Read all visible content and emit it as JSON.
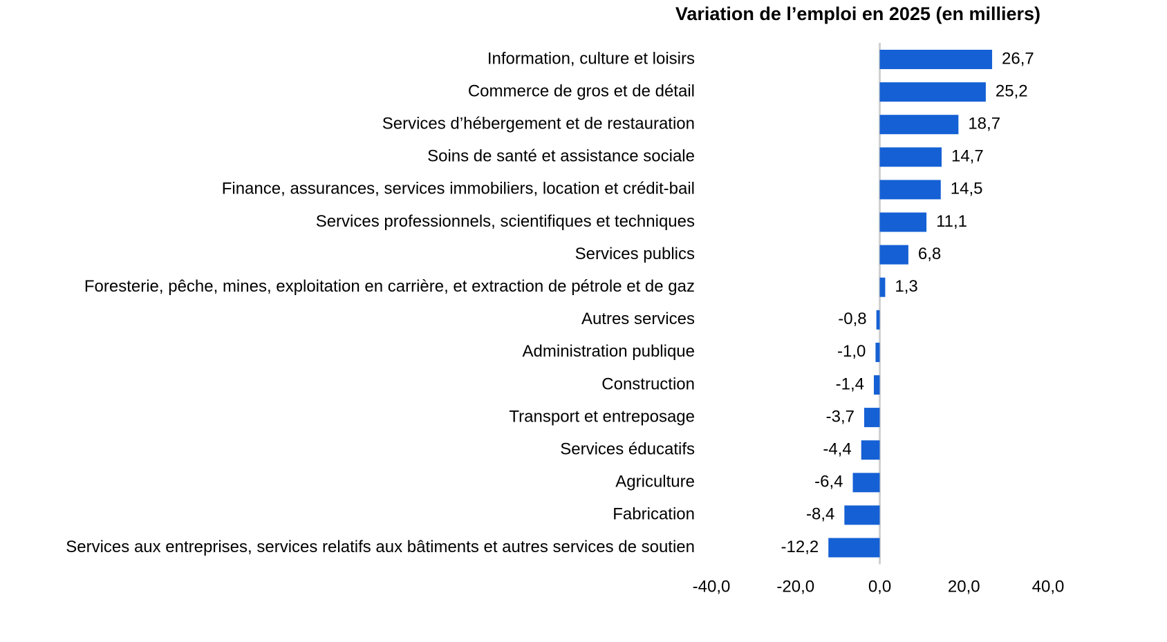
{
  "chart_data": {
    "type": "barh",
    "title": "Variation de l’emploi en 2025 (en milliers)",
    "categories": [
      "Information, culture et loisirs",
      "Commerce de gros et de détail",
      "Services d’hébergement et de restauration",
      "Soins de santé et assistance sociale",
      "Finance, assurances, services immobiliers, location et crédit-bail",
      "Services professionnels, scientifiques et techniques",
      "Services publics",
      "Foresterie, pêche, mines, exploitation en carrière, et extraction de pétrole et de gaz",
      "Autres services",
      "Administration publique",
      "Construction",
      "Transport et entreposage",
      "Services éducatifs",
      "Agriculture",
      "Fabrication",
      "Services aux entreprises, services relatifs aux bâtiments et autres services de soutien"
    ],
    "values": [
      26.7,
      25.2,
      18.7,
      14.7,
      14.5,
      11.1,
      6.8,
      1.3,
      -0.8,
      -1.0,
      -1.4,
      -3.7,
      -4.4,
      -6.4,
      -8.4,
      -12.2
    ],
    "value_labels": [
      "26,7",
      "25,2",
      "18,7",
      "14,7",
      "14,5",
      "11,1",
      "6,8",
      "1,3",
      "-0,8",
      "-1,0",
      "-1,4",
      "-3,7",
      "-4,4",
      "-6,4",
      "-8,4",
      "-12,2"
    ],
    "color": "#1560d4",
    "xlim": [
      -40,
      40
    ],
    "xticks": [
      {
        "value": -40,
        "label": "-40,0"
      },
      {
        "value": -20,
        "label": "-20,0"
      },
      {
        "value": 0,
        "label": "0,0"
      },
      {
        "value": 20,
        "label": "20,0"
      },
      {
        "value": 40,
        "label": "40,0"
      }
    ]
  }
}
